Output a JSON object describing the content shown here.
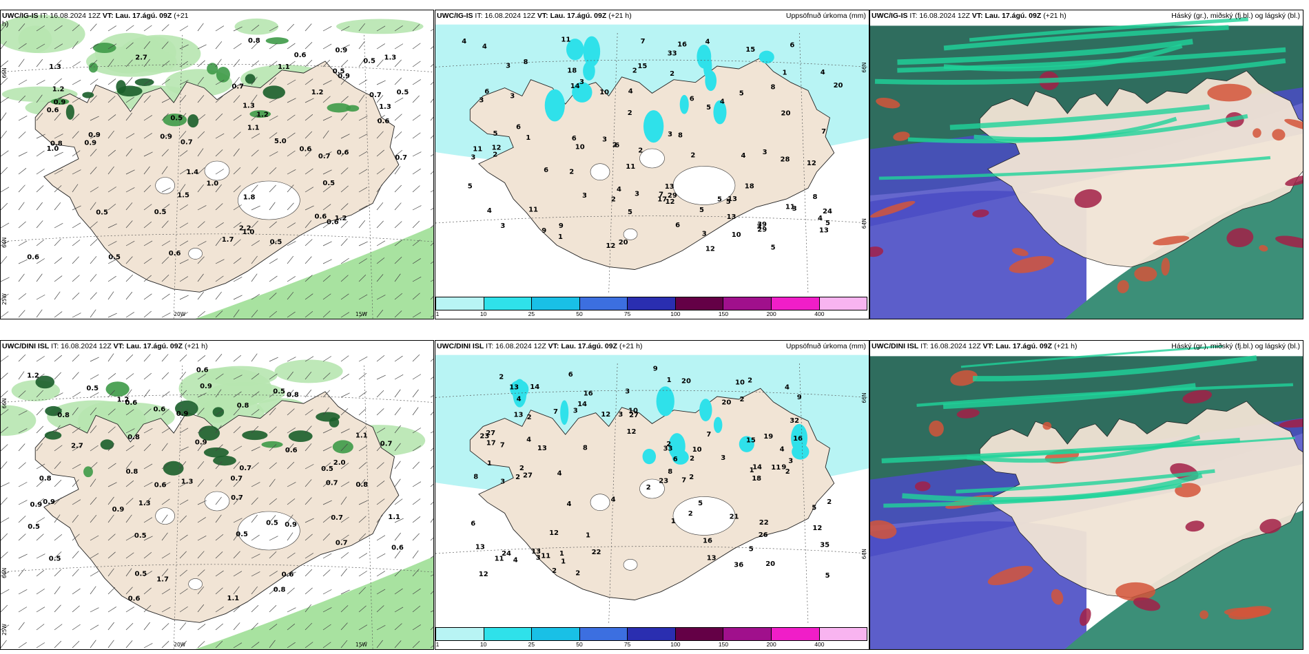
{
  "colors": {
    "land": "#f1e4d5",
    "precip_light": "#b8f4f4",
    "precip_mid": "#2fe1ea",
    "cloud_high": "#1fb98a",
    "cloud_mid": "#4a4cc4",
    "cloud_low": "#a22046"
  },
  "panels": [
    {
      "id": "ig-wind",
      "title_model": "UWC/IG-IS",
      "title_rest": " IT: 16.08.2024 12Z ",
      "title_vt": "VT: Lau. 17.ágú. 09Z",
      "title_lead": " (+21",
      "title_lead_cont": "h)",
      "right": "",
      "axis": {
        "lat_top": "66N",
        "lat_bottom": "64N",
        "lon_left": "20W",
        "lon_right": "15W",
        "corner": "25W"
      },
      "labels": [
        "1.3",
        "0.7",
        "0.9",
        "0.6",
        "0.6",
        "0.9",
        "0.7",
        "0.5",
        "0.8",
        "0.6",
        "1.7",
        "0.5",
        "0.6",
        "0.6",
        "1.2",
        "2.7",
        "2.2",
        "0.9",
        "0.8",
        "0.7",
        "0.5",
        "0.6",
        "1.3",
        "1.2",
        "1.0",
        "1.5",
        "0.5",
        "0.7",
        "0.5",
        "0.6",
        "1.3",
        "0.9",
        "0.5",
        "0.7",
        "0.9",
        "1.2",
        "0.6",
        "0.6",
        "0.5",
        "1.4",
        "1.0",
        "0.9",
        "0.5",
        "0.5",
        "1.3",
        "1.1",
        "1.8",
        "1.0",
        "1.2",
        "5.0",
        "1.1"
      ]
    },
    {
      "id": "ig-precip",
      "title_model": "UWC/IG-IS",
      "title_rest": " IT: 16.08.2024 12Z ",
      "title_vt": "VT: Lau. 17.ágú. 09Z",
      "title_lead": " (+21 h)",
      "right": "Uppsöfnuð úrkoma (mm)",
      "axis": {
        "lat_top": "66N",
        "lat_bottom": "64N"
      },
      "labels": [
        "4",
        "6",
        "5",
        "6",
        "3",
        "11",
        "13",
        "14",
        "5",
        "4",
        "7",
        "24",
        "10",
        "9",
        "33",
        "6",
        "8",
        "39",
        "28",
        "5",
        "3",
        "2",
        "11",
        "8",
        "12",
        "18",
        "29",
        "11",
        "4",
        "20",
        "13",
        "15",
        "17",
        "5",
        "12",
        "13",
        "20",
        "18",
        "3",
        "9",
        "6",
        "12",
        "11",
        "8",
        "13",
        "16",
        "5",
        "4",
        "10",
        "5",
        "8",
        "5",
        "6",
        "6",
        "4",
        "7",
        "4",
        "3",
        "2",
        "1",
        "3",
        "11",
        "4",
        "3",
        "2",
        "4",
        "2",
        "20",
        "15",
        "12",
        "10",
        "12",
        "29",
        "7",
        "6",
        "2",
        "1",
        "4",
        "2",
        "1",
        "3",
        "3",
        "2",
        "5",
        "5",
        "2",
        "5",
        "6",
        "3",
        "3",
        "3",
        "4",
        "2",
        "3",
        "3",
        "3"
      ]
    },
    {
      "id": "ig-cloud",
      "title_model": "UWC/IG-IS",
      "title_rest": " IT: 16.08.2024 12Z ",
      "title_vt": "VT: Lau. 17.ágú. 09Z",
      "title_lead": " (+21 h)",
      "right": "Háský (gr.), miðský (fj.bl.) og lágský (bl.)",
      "labels": []
    },
    {
      "id": "dini-wind",
      "title_model": "UWC/DINI ISL",
      "title_rest": " IT: 16.08.2024 12Z ",
      "title_vt": "VT: Lau. 17.ágú. 09Z",
      "title_lead": " (+21 h)",
      "right": "",
      "axis": {
        "lat_top": "66N",
        "lat_bottom": "64N",
        "lon_left": "20W",
        "lon_right": "15W",
        "corner": "25W"
      },
      "labels": [
        "0.9",
        "0.5",
        "0.5",
        "0.7",
        "0.6",
        "0.9",
        "0.5",
        "0.6",
        "0.7",
        "0.5",
        "0.7",
        "0.8",
        "1.2",
        "1.3",
        "0.6",
        "0.6",
        "0.8",
        "1.1",
        "0.9",
        "0.9",
        "0.5",
        "0.7",
        "0.5",
        "0.8",
        "0.8",
        "2.7",
        "0.9",
        "1.3",
        "0.6",
        "1.1",
        "0.7",
        "0.8",
        "1.2",
        "0.7",
        "1.1",
        "0.9",
        "2.0",
        "0.9",
        "0.8",
        "0.6",
        "0.5",
        "0.8",
        "1.7",
        "0.8",
        "0.7",
        "0.6",
        "0.5",
        "0.6",
        "0.5"
      ]
    },
    {
      "id": "dini-precip",
      "title_model": "UWC/DINI ISL",
      "title_rest": " IT: 16.08.2024 12Z ",
      "title_vt": "VT: Lau. 17.ágú. 09Z",
      "title_lead": " (+21 h)",
      "right": "Uppsöfnuð úrkoma (mm)",
      "axis": {
        "lat_top": "66N",
        "lat_bottom": "64N"
      },
      "labels": [
        "4",
        "2",
        "2",
        "5",
        "8",
        "3",
        "3",
        "2",
        "2",
        "9",
        "4",
        "3",
        "6",
        "3",
        "36",
        "20",
        "23",
        "8",
        "14",
        "2",
        "7",
        "9",
        "35",
        "5",
        "22",
        "11",
        "11",
        "10",
        "7",
        "19",
        "13",
        "33",
        "27",
        "22",
        "23",
        "14",
        "12",
        "7",
        "32",
        "21",
        "13",
        "24",
        "27",
        "14",
        "8",
        "12",
        "3",
        "4",
        "3",
        "27",
        "17",
        "10",
        "12",
        "4",
        "5",
        "6",
        "5",
        "20",
        "18",
        "12",
        "16",
        "13",
        "3",
        "13",
        "4",
        "7",
        "4",
        "6",
        "10",
        "15",
        "11",
        "2",
        "1",
        "20",
        "16",
        "13",
        "13",
        "12",
        "26",
        "16",
        "2",
        "9",
        "4",
        "2",
        "1",
        "1",
        "1",
        "2",
        "2",
        "4",
        "2",
        "2",
        "1",
        "1",
        "1",
        "2",
        "2",
        "2"
      ]
    },
    {
      "id": "dini-cloud",
      "title_model": "UWC/DINI ISL",
      "title_rest": " IT: 16.08.2024 12Z ",
      "title_vt": "VT: Lau. 17.ágú. 09Z",
      "title_lead": " (+21 h)",
      "right": "Háský (gr.), miðský (fj.bl.) og lágský (bl.)",
      "labels": []
    }
  ],
  "colorbar": {
    "ticks": [
      "1",
      "10",
      "25",
      "50",
      "75",
      "100",
      "150",
      "200",
      "400"
    ],
    "colors": [
      "#b8f4f4",
      "#2fe1ea",
      "#19c0e6",
      "#3c6fe0",
      "#2a2eb0",
      "#640046",
      "#a0108c",
      "#f01ec8",
      "#f8b4f0"
    ]
  }
}
